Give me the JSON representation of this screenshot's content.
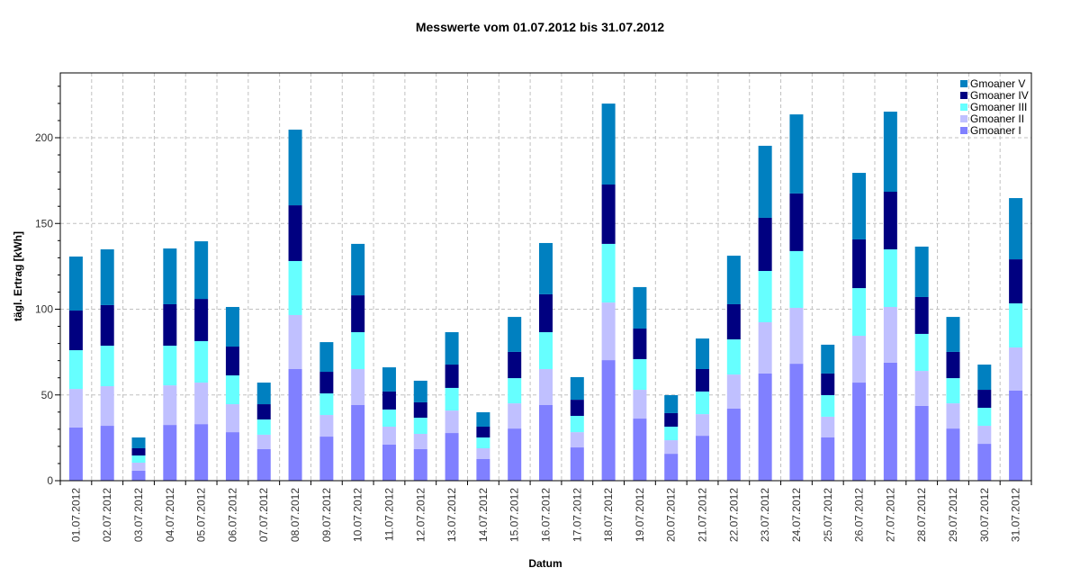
{
  "chart_data": {
    "type": "bar",
    "stacked": true,
    "title": "Messwerte vom 01.07.2012 bis 31.07.2012",
    "xlabel": "Datum",
    "ylabel": "tägl. Ertrag [kWh]",
    "ylim": [
      0,
      238
    ],
    "yticks": [
      0,
      50,
      100,
      150,
      200
    ],
    "grid": true,
    "legend_position": "top-right-inside",
    "categories": [
      "01.07.2012",
      "02.07.2012",
      "03.07.2012",
      "04.07.2012",
      "05.07.2012",
      "06.07.2012",
      "07.07.2012",
      "08.07.2012",
      "09.07.2012",
      "10.07.2012",
      "11.07.2012",
      "12.07.2012",
      "13.07.2012",
      "14.07.2012",
      "15.07.2012",
      "16.07.2012",
      "17.07.2012",
      "18.07.2012",
      "19.07.2012",
      "20.07.2012",
      "21.07.2012",
      "22.07.2012",
      "23.07.2012",
      "24.07.2012",
      "25.07.2012",
      "26.07.2012",
      "27.07.2012",
      "28.07.2012",
      "29.07.2012",
      "30.07.2012",
      "31.07.2012"
    ],
    "series": [
      {
        "name": "Gmoaner I",
        "color": "#8080FF",
        "values": [
          31.0,
          32.0,
          5.8,
          32.5,
          33.0,
          28.3,
          18.4,
          65.1,
          25.7,
          44.1,
          21.0,
          18.4,
          27.8,
          12.6,
          30.4,
          44.1,
          19.4,
          70.3,
          36.2,
          15.7,
          26.2,
          42.0,
          62.5,
          68.2,
          25.2,
          57.2,
          68.8,
          43.6,
          30.4,
          21.5,
          52.5
        ]
      },
      {
        "name": "Gmoaner II",
        "color": "#C0C0FF",
        "values": [
          22.5,
          23.1,
          4.7,
          23.1,
          24.2,
          16.3,
          8.4,
          31.5,
          12.6,
          21.0,
          10.5,
          8.9,
          13.1,
          6.3,
          14.7,
          21.0,
          8.9,
          33.6,
          16.8,
          7.9,
          12.6,
          19.9,
          29.9,
          32.6,
          12.1,
          27.3,
          32.5,
          20.4,
          14.7,
          10.5,
          25.2
        ]
      },
      {
        "name": "Gmoaner III",
        "color": "#66FFFF",
        "values": [
          22.6,
          23.6,
          4.2,
          23.1,
          24.2,
          16.8,
          8.9,
          31.5,
          12.6,
          21.5,
          10.0,
          9.4,
          13.2,
          6.3,
          14.7,
          21.5,
          9.5,
          34.2,
          17.9,
          7.9,
          13.2,
          20.5,
          29.9,
          33.1,
          12.6,
          27.8,
          33.6,
          21.6,
          14.7,
          10.5,
          25.7
        ]
      },
      {
        "name": "Gmoaner IV",
        "color": "#000080",
        "values": [
          23.1,
          23.7,
          4.2,
          24.2,
          24.6,
          16.8,
          8.9,
          32.5,
          12.6,
          21.5,
          10.5,
          9.0,
          13.6,
          6.3,
          15.3,
          22.1,
          9.4,
          34.6,
          17.8,
          7.9,
          13.1,
          20.5,
          31.0,
          33.6,
          12.6,
          28.4,
          33.6,
          21.5,
          15.3,
          10.5,
          25.7
        ]
      },
      {
        "name": "Gmoaner V",
        "color": "#0080C0",
        "values": [
          31.5,
          32.5,
          6.3,
          32.5,
          33.6,
          23.1,
          12.6,
          44.1,
          17.3,
          30.0,
          14.1,
          12.6,
          18.9,
          8.4,
          20.4,
          29.9,
          13.2,
          47.2,
          24.2,
          10.5,
          17.8,
          28.3,
          42.0,
          46.1,
          16.8,
          38.8,
          46.7,
          29.4,
          20.4,
          14.7,
          35.7
        ]
      }
    ],
    "legend_order": [
      "Gmoaner V",
      "Gmoaner IV",
      "Gmoaner III",
      "Gmoaner II",
      "Gmoaner I"
    ]
  }
}
